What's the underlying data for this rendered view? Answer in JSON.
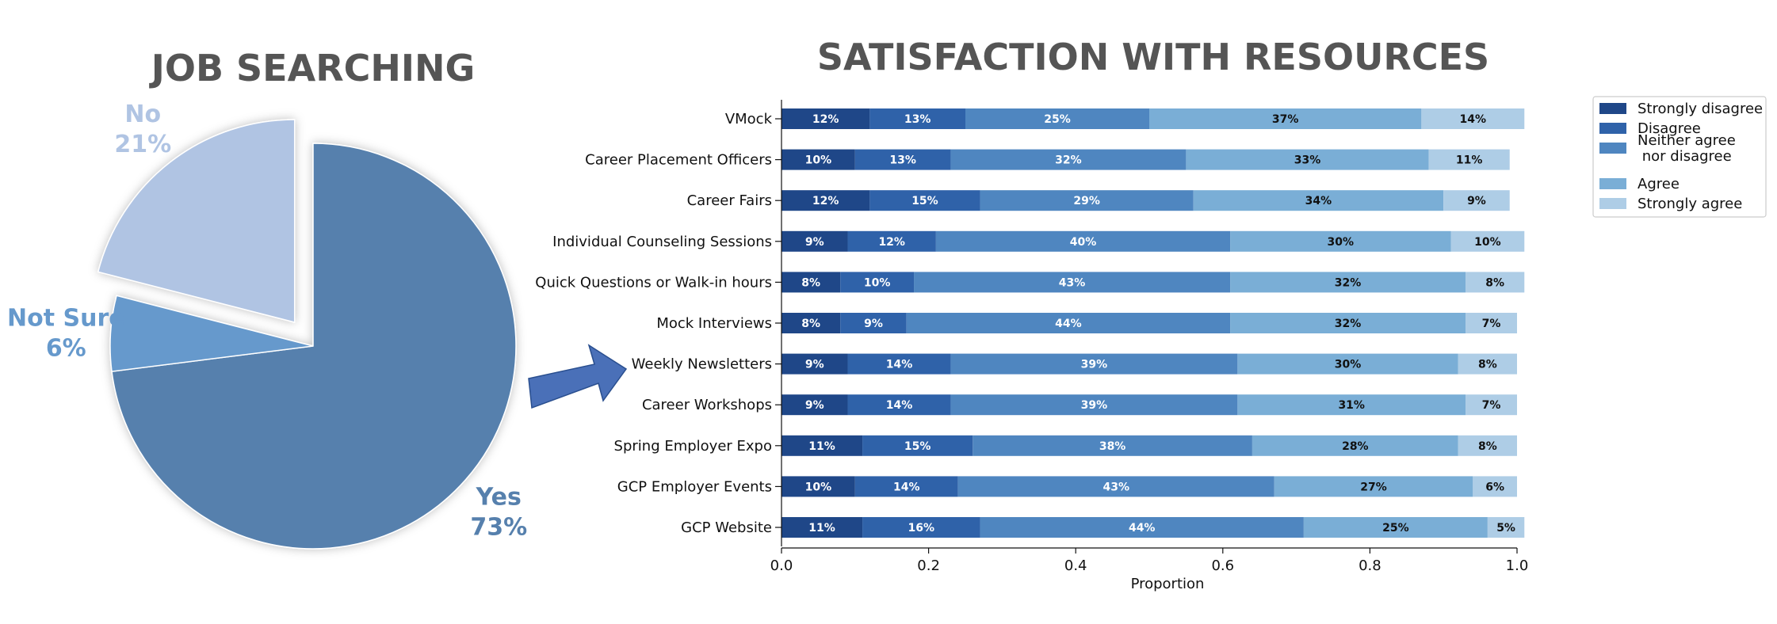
{
  "colors": {
    "title": "#555555",
    "pie": {
      "Yes": "#5680ad",
      "Not Sure": "#6699cc",
      "No": "#b0c4e3"
    },
    "bars": [
      "#1f4788",
      "#2f62a9",
      "#4f86c0",
      "#7aaed6",
      "#aecde6"
    ],
    "arrow_fill": "#4a70b8",
    "arrow_stroke": "#2a4f8f"
  },
  "chart_data": [
    {
      "type": "pie",
      "title": "JOB SEARCHING",
      "slices": [
        {
          "label": "Yes",
          "value": 73,
          "value_label": "73%",
          "color": "#5680ad",
          "exploded": false
        },
        {
          "label": "Not Sure",
          "value": 6,
          "value_label": "6%",
          "color": "#6699cc",
          "exploded": false
        },
        {
          "label": "No",
          "value": 21,
          "value_label": "21%",
          "color": "#b0c4e3",
          "exploded": true
        }
      ]
    },
    {
      "type": "bar",
      "orientation": "horizontal",
      "stacked": true,
      "title": "SATISFACTION WITH RESOURCES",
      "xlabel": "Proportion",
      "xlim": [
        0,
        1
      ],
      "xticks": [
        "0.0",
        "0.2",
        "0.4",
        "0.6",
        "0.8",
        "1.0"
      ],
      "legend_position": "outside-right-top",
      "categories": [
        "VMock",
        "Career Placement Officers",
        "Career Fairs",
        "Individual Counseling Sessions",
        "Quick Questions or Walk-in hours",
        "Mock Interviews",
        "Weekly Newsletters",
        "Career Workshops",
        "Spring Employer Expo",
        "GCP Employer Events",
        "GCP Website"
      ],
      "series": [
        {
          "name": "Strongly disagree",
          "values": [
            0.12,
            0.1,
            0.12,
            0.09,
            0.08,
            0.08,
            0.09,
            0.09,
            0.11,
            0.1,
            0.11
          ],
          "labels": [
            "12%",
            "10%",
            "12%",
            "9%",
            "8%",
            "8%",
            "9%",
            "9%",
            "11%",
            "10%",
            "11%"
          ]
        },
        {
          "name": "Disagree",
          "values": [
            0.13,
            0.13,
            0.15,
            0.12,
            0.1,
            0.09,
            0.14,
            0.14,
            0.15,
            0.14,
            0.16
          ],
          "labels": [
            "13%",
            "13%",
            "15%",
            "12%",
            "10%",
            "9%",
            "14%",
            "14%",
            "15%",
            "14%",
            "16%"
          ]
        },
        {
          "name": "Neither agree\n nor disagree",
          "values": [
            0.25,
            0.32,
            0.29,
            0.4,
            0.43,
            0.44,
            0.39,
            0.39,
            0.38,
            0.43,
            0.44
          ],
          "labels": [
            "25%",
            "32%",
            "29%",
            "40%",
            "43%",
            "44%",
            "39%",
            "39%",
            "38%",
            "43%",
            "44%"
          ]
        },
        {
          "name": "Agree",
          "values": [
            0.37,
            0.33,
            0.34,
            0.3,
            0.32,
            0.32,
            0.3,
            0.31,
            0.28,
            0.27,
            0.25
          ],
          "labels": [
            "37%",
            "33%",
            "34%",
            "30%",
            "32%",
            "32%",
            "30%",
            "31%",
            "28%",
            "27%",
            "25%"
          ]
        },
        {
          "name": "Strongly agree",
          "values": [
            0.14,
            0.11,
            0.09,
            0.1,
            0.08,
            0.07,
            0.08,
            0.07,
            0.08,
            0.06,
            0.05
          ],
          "labels": [
            "14%",
            "11%",
            "9%",
            "10%",
            "8%",
            "7%",
            "8%",
            "7%",
            "8%",
            "6%",
            "5%"
          ]
        }
      ]
    }
  ]
}
